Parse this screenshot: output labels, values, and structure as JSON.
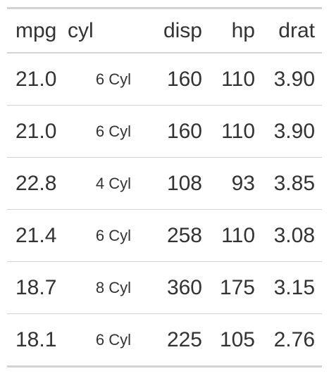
{
  "table": {
    "columns": [
      {
        "key": "mpg",
        "label": "mpg"
      },
      {
        "key": "cyl",
        "label": "cyl"
      },
      {
        "key": "disp",
        "label": "disp"
      },
      {
        "key": "hp",
        "label": "hp"
      },
      {
        "key": "drat",
        "label": "drat"
      }
    ],
    "rows": [
      {
        "mpg": "21.0",
        "cyl": "6 Cyl",
        "disp": "160",
        "hp": "110",
        "drat": "3.90"
      },
      {
        "mpg": "21.0",
        "cyl": "6 Cyl",
        "disp": "160",
        "hp": "110",
        "drat": "3.90"
      },
      {
        "mpg": "22.8",
        "cyl": "4 Cyl",
        "disp": "108",
        "hp": "93",
        "drat": "3.85"
      },
      {
        "mpg": "21.4",
        "cyl": "6 Cyl",
        "disp": "258",
        "hp": "110",
        "drat": "3.08"
      },
      {
        "mpg": "18.7",
        "cyl": "8 Cyl",
        "disp": "360",
        "hp": "175",
        "drat": "3.15"
      },
      {
        "mpg": "18.1",
        "cyl": "6 Cyl",
        "disp": "225",
        "hp": "105",
        "drat": "2.76"
      }
    ]
  }
}
